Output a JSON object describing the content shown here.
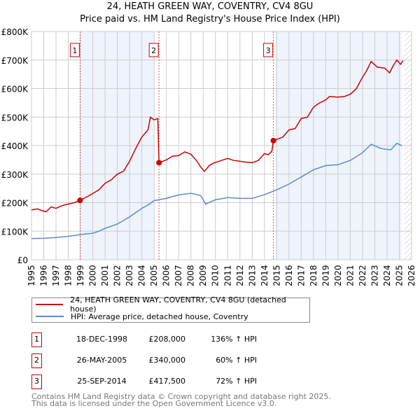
{
  "chart_data": {
    "type": "line",
    "title": "24, HEATH GREEN WAY, COVENTRY, CV4 8GU",
    "subtitle": "Price paid vs. HM Land Registry's House Price Index (HPI)",
    "xlim": [
      1995,
      2026
    ],
    "ylim": [
      0,
      800000
    ],
    "x_ticks": [
      "1995",
      "1996",
      "1997",
      "1998",
      "1999",
      "2000",
      "2001",
      "2002",
      "2003",
      "2004",
      "2005",
      "2006",
      "2007",
      "2008",
      "2009",
      "2010",
      "2011",
      "2012",
      "2013",
      "2014",
      "2015",
      "2016",
      "2017",
      "2018",
      "2019",
      "2020",
      "2021",
      "2022",
      "2023",
      "2024",
      "2025",
      "2026"
    ],
    "y_ticks": [
      {
        "v": 0,
        "label": "£0"
      },
      {
        "v": 100000,
        "label": "£100K"
      },
      {
        "v": 200000,
        "label": "£200K"
      },
      {
        "v": 300000,
        "label": "£300K"
      },
      {
        "v": 400000,
        "label": "£400K"
      },
      {
        "v": 500000,
        "label": "£500K"
      },
      {
        "v": 600000,
        "label": "£600K"
      },
      {
        "v": 700000,
        "label": "£700K"
      },
      {
        "v": 800000,
        "label": "£800K"
      }
    ],
    "grid": true,
    "shaded_ranges": [
      [
        1998.96,
        2005.0
      ],
      [
        2014.9,
        2025.2
      ]
    ],
    "hatched_from": 2025.4,
    "series": [
      {
        "name": "24, HEATH GREEN WAY, COVENTRY, CV4 8GU (detached house)",
        "color": "#cc0000",
        "x": [
          1995,
          1995.5,
          1996,
          1996.2,
          1996.6,
          1997,
          1997.5,
          1998,
          1998.5,
          1998.96,
          1999.5,
          2000,
          2000.5,
          2001,
          2001.5,
          2002,
          2002.5,
          2003,
          2003.5,
          2004,
          2004.5,
          2004.7,
          2005,
          2005.3,
          2005.4,
          2006,
          2006.5,
          2007,
          2007.5,
          2008,
          2008.5,
          2008.8,
          2009.1,
          2009.5,
          2009.8,
          2010.5,
          2011,
          2011.5,
          2012,
          2012.5,
          2013,
          2013.5,
          2014,
          2014.3,
          2014.6,
          2014.73,
          2015.5,
          2016,
          2016.5,
          2017,
          2017.5,
          2018,
          2018.5,
          2019,
          2019.3,
          2020,
          2020.5,
          2021,
          2021.5,
          2022,
          2022.3,
          2022.7,
          2023.2,
          2023.8,
          2024.2,
          2024.5,
          2024.8,
          2025.1,
          2025.3
        ],
        "y": [
          175000,
          178000,
          170000,
          168000,
          185000,
          180000,
          190000,
          195000,
          200000,
          208000,
          220000,
          232000,
          245000,
          268000,
          280000,
          300000,
          310000,
          345000,
          390000,
          430000,
          455000,
          500000,
          490000,
          495000,
          340000,
          350000,
          363000,
          365000,
          378000,
          370000,
          345000,
          325000,
          310000,
          330000,
          338000,
          348000,
          355000,
          348000,
          345000,
          342000,
          340000,
          348000,
          372000,
          368000,
          380000,
          417500,
          430000,
          455000,
          460000,
          495000,
          500000,
          535000,
          550000,
          560000,
          572000,
          570000,
          572000,
          580000,
          600000,
          640000,
          660000,
          695000,
          675000,
          672000,
          655000,
          680000,
          700000,
          685000,
          698000
        ]
      },
      {
        "name": "HPI: Average price, detached house, Coventry",
        "color": "#5b8bd0",
        "x": [
          1995,
          1996,
          1997,
          1998,
          1999,
          2000,
          2000.5,
          2001,
          2002,
          2003,
          2004,
          2004.5,
          2005,
          2006,
          2007,
          2008,
          2008.8,
          2009.2,
          2010,
          2011,
          2012,
          2013,
          2014,
          2015,
          2016,
          2017,
          2018,
          2019,
          2020,
          2021,
          2022,
          2022.7,
          2023.5,
          2024.3,
          2024.8,
          2025.2
        ],
        "y": [
          74000,
          75000,
          78000,
          82000,
          88000,
          93000,
          100000,
          110000,
          125000,
          150000,
          180000,
          192000,
          207000,
          215000,
          227000,
          233000,
          225000,
          195000,
          210000,
          218000,
          215000,
          215000,
          228000,
          245000,
          265000,
          290000,
          315000,
          330000,
          333000,
          348000,
          375000,
          405000,
          390000,
          385000,
          408000,
          400000
        ]
      }
    ],
    "sales": [
      {
        "n": "1",
        "x": 1998.96,
        "price": 208000,
        "date": "18-DEC-1998",
        "price_label": "£208,000",
        "hpi": "136% ↑ HPI"
      },
      {
        "n": "2",
        "x": 2005.4,
        "price": 340000,
        "date": "26-MAY-2005",
        "price_label": "£340,000",
        "hpi": "60% ↑ HPI"
      },
      {
        "n": "3",
        "x": 2014.73,
        "price": 417500,
        "date": "25-SEP-2014",
        "price_label": "£417,500",
        "hpi": "72% ↑ HPI"
      }
    ]
  },
  "footer": [
    "Contains HM Land Registry data © Crown copyright and database right 2025.",
    "This data is licensed under the Open Government Licence v3.0."
  ]
}
